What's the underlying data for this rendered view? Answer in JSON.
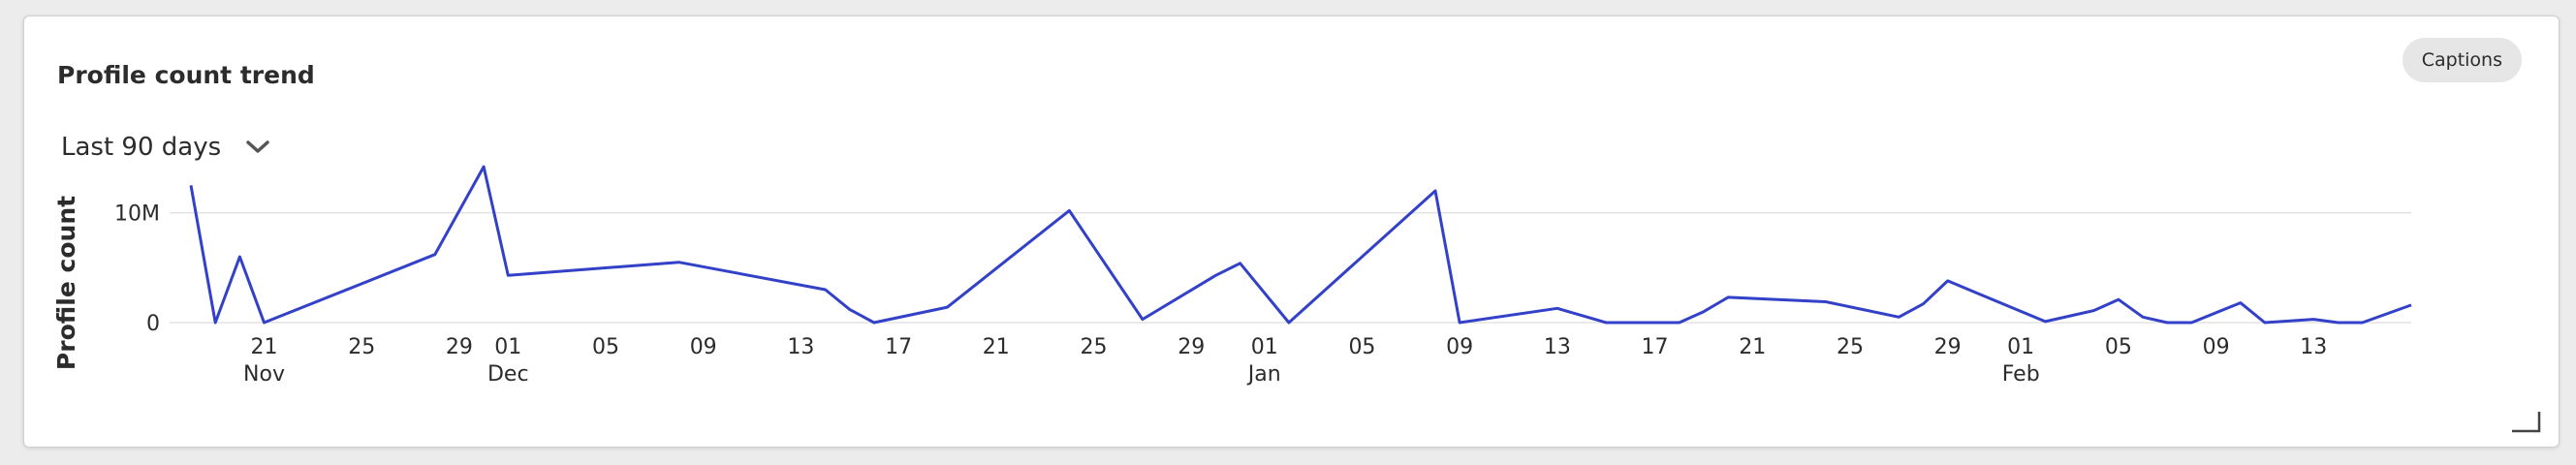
{
  "card": {
    "title": "Profile count trend",
    "captions_label": "Captions",
    "range_label": "Last 90 days"
  },
  "colors": {
    "line": "#3341c8",
    "grid": "#e3e3e3",
    "text": "#2c2c2c"
  },
  "chart_data": {
    "type": "line",
    "title": "Profile count trend",
    "xlabel": "",
    "ylabel": "Profile count",
    "x_range": [
      "2023-11-18",
      "2024-02-17"
    ],
    "ylim": [
      0,
      12000000
    ],
    "yticks": [
      {
        "value": 0,
        "label": "0"
      },
      {
        "value": 10000000,
        "label": "10M"
      }
    ],
    "xticks": [
      {
        "date": "2023-11-21",
        "label": "21",
        "sub": "Nov"
      },
      {
        "date": "2023-11-25",
        "label": "25",
        "sub": ""
      },
      {
        "date": "2023-11-29",
        "label": "29",
        "sub": ""
      },
      {
        "date": "2023-12-01",
        "label": "01",
        "sub": "Dec"
      },
      {
        "date": "2023-12-05",
        "label": "05",
        "sub": ""
      },
      {
        "date": "2023-12-09",
        "label": "09",
        "sub": ""
      },
      {
        "date": "2023-12-13",
        "label": "13",
        "sub": ""
      },
      {
        "date": "2023-12-17",
        "label": "17",
        "sub": ""
      },
      {
        "date": "2023-12-21",
        "label": "21",
        "sub": ""
      },
      {
        "date": "2023-12-25",
        "label": "25",
        "sub": ""
      },
      {
        "date": "2023-12-29",
        "label": "29",
        "sub": ""
      },
      {
        "date": "2024-01-01",
        "label": "01",
        "sub": "Jan"
      },
      {
        "date": "2024-01-05",
        "label": "05",
        "sub": ""
      },
      {
        "date": "2024-01-09",
        "label": "09",
        "sub": ""
      },
      {
        "date": "2024-01-13",
        "label": "13",
        "sub": ""
      },
      {
        "date": "2024-01-17",
        "label": "17",
        "sub": ""
      },
      {
        "date": "2024-01-21",
        "label": "21",
        "sub": ""
      },
      {
        "date": "2024-01-25",
        "label": "25",
        "sub": ""
      },
      {
        "date": "2024-01-29",
        "label": "29",
        "sub": ""
      },
      {
        "date": "2024-02-01",
        "label": "01",
        "sub": "Feb"
      },
      {
        "date": "2024-02-05",
        "label": "05",
        "sub": ""
      },
      {
        "date": "2024-02-09",
        "label": "09",
        "sub": ""
      },
      {
        "date": "2024-02-13",
        "label": "13",
        "sub": ""
      }
    ],
    "series": [
      {
        "points": [
          [
            "2023-11-18",
            12500000
          ],
          [
            "2023-11-19",
            0
          ],
          [
            "2023-11-20",
            6000000
          ],
          [
            "2023-11-21",
            0
          ],
          [
            "2023-11-28",
            6200000
          ],
          [
            "2023-11-30",
            14200000
          ],
          [
            "2023-12-01",
            4300000
          ],
          [
            "2023-12-08",
            5500000
          ],
          [
            "2023-12-14",
            3000000
          ],
          [
            "2023-12-15",
            1200000
          ],
          [
            "2023-12-16",
            0
          ],
          [
            "2023-12-19",
            1400000
          ],
          [
            "2023-12-24",
            10200000
          ],
          [
            "2023-12-27",
            300000
          ],
          [
            "2023-12-30",
            4300000
          ],
          [
            "2023-12-31",
            5400000
          ],
          [
            "2024-01-02",
            0
          ],
          [
            "2024-01-08",
            12000000
          ],
          [
            "2024-01-09",
            0
          ],
          [
            "2024-01-13",
            1300000
          ],
          [
            "2024-01-15",
            0
          ],
          [
            "2024-01-18",
            0
          ],
          [
            "2024-01-19",
            1000000
          ],
          [
            "2024-01-20",
            2300000
          ],
          [
            "2024-01-24",
            1900000
          ],
          [
            "2024-01-27",
            500000
          ],
          [
            "2024-01-28",
            1700000
          ],
          [
            "2024-01-29",
            3800000
          ],
          [
            "2024-02-02",
            100000
          ],
          [
            "2024-02-04",
            1100000
          ],
          [
            "2024-02-05",
            2100000
          ],
          [
            "2024-02-06",
            500000
          ],
          [
            "2024-02-07",
            0
          ],
          [
            "2024-02-08",
            0
          ],
          [
            "2024-02-10",
            1800000
          ],
          [
            "2024-02-11",
            0
          ],
          [
            "2024-02-13",
            300000
          ],
          [
            "2024-02-14",
            0
          ],
          [
            "2024-02-15",
            0
          ],
          [
            "2024-02-17",
            1600000
          ]
        ]
      }
    ]
  }
}
